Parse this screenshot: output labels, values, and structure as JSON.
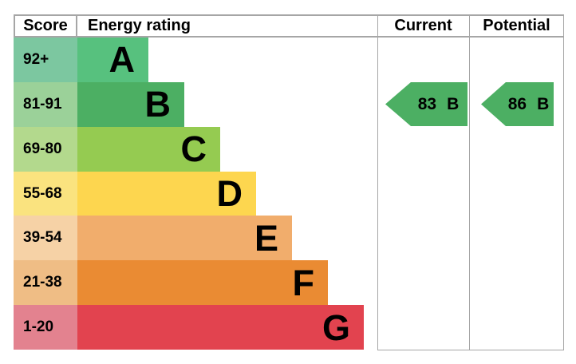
{
  "headers": {
    "score": "Score",
    "energy_rating": "Energy rating",
    "current": "Current",
    "potential": "Potential"
  },
  "bands": [
    {
      "score": "92+",
      "letter": "A",
      "color": "#57c17e",
      "tint": "#7cc7a0"
    },
    {
      "score": "81-91",
      "letter": "B",
      "color": "#4caf63",
      "tint": "#9bd199"
    },
    {
      "score": "69-80",
      "letter": "C",
      "color": "#95cb51",
      "tint": "#b3d98d"
    },
    {
      "score": "55-68",
      "letter": "D",
      "color": "#fdd64f",
      "tint": "#fae37f"
    },
    {
      "score": "39-54",
      "letter": "E",
      "color": "#f1ad6c",
      "tint": "#f6d2a6"
    },
    {
      "score": "21-38",
      "letter": "F",
      "color": "#ea8b33",
      "tint": "#efbd85"
    },
    {
      "score": "1-20",
      "letter": "G",
      "color": "#e2434f",
      "tint": "#e3828f"
    }
  ],
  "current": {
    "value": "83",
    "letter": "B",
    "arrow_color": "#4caf63"
  },
  "potential": {
    "value": "86",
    "letter": "B",
    "arrow_color": "#4caf63"
  },
  "border_color": "#a6a6a6",
  "chart_data": {
    "type": "bar",
    "title": "EPC energy rating chart",
    "categories": [
      "A",
      "B",
      "C",
      "D",
      "E",
      "F",
      "G"
    ],
    "score_ranges": [
      "92+",
      "81-91",
      "69-80",
      "55-68",
      "39-54",
      "21-38",
      "1-20"
    ],
    "values": [
      1,
      2,
      3,
      4,
      5,
      6,
      7
    ],
    "band_colors": [
      "#57c17e",
      "#4aaf63",
      "#95cb51",
      "#fdd64f",
      "#f1ad6c",
      "#ea8b33",
      "#e2434f"
    ],
    "columns": [
      "Score",
      "Energy rating",
      "Current",
      "Potential"
    ],
    "current": {
      "score": 83,
      "band": "B"
    },
    "potential": {
      "score": 86,
      "band": "B"
    },
    "legend_position": "none",
    "grid": false
  }
}
